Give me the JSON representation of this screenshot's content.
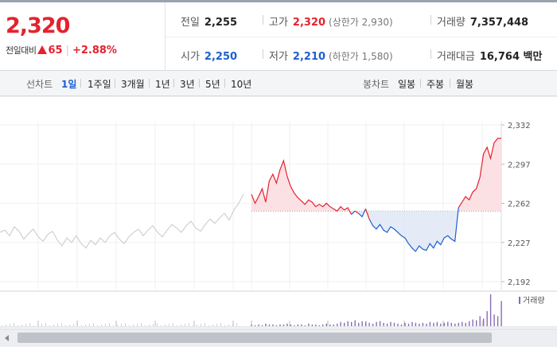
{
  "quote": {
    "price": "2,320",
    "change_label": "전일대비",
    "change": "65",
    "change_pct": "+2.88%",
    "prev_close_label": "전일",
    "prev_close": "2,255",
    "open_label": "시가",
    "open": "2,250",
    "high_label": "고가",
    "high": "2,320",
    "upper_limit": "(상한가 2,930)",
    "low_label": "저가",
    "low": "2,210",
    "lower_limit": "(하한가 1,580)",
    "volume_label": "거래량",
    "volume": "7,357,448",
    "amount_label": "거래대금",
    "amount": "16,764 백만"
  },
  "tabs": {
    "line_title": "선차트",
    "line_items": [
      "1일",
      "1주일",
      "3개월",
      "1년",
      "3년",
      "5년",
      "10년"
    ],
    "active_line": "1일",
    "candle_title": "봉차트",
    "candle_items": [
      "일봉",
      "주봉",
      "월봉"
    ]
  },
  "colors": {
    "up": "#e5222f",
    "down": "#1e5fcf",
    "neutral": "#c8c8c8",
    "volume": "#8a6bb5"
  },
  "chart_data": {
    "type": "line",
    "y_ticks": [
      "2,332",
      "2,297",
      "2,262",
      "2,227",
      "2,192"
    ],
    "ylim": [
      2192,
      2332
    ],
    "reference": 2255,
    "prev_day_series": [
      2236,
      2238,
      2233,
      2241,
      2237,
      2230,
      2235,
      2239,
      2232,
      2228,
      2234,
      2237,
      2229,
      2224,
      2231,
      2227,
      2233,
      2226,
      2222,
      2229,
      2225,
      2231,
      2227,
      2233,
      2236,
      2230,
      2226,
      2232,
      2236,
      2239,
      2233,
      2238,
      2242,
      2236,
      2232,
      2238,
      2243,
      2240,
      2236,
      2242,
      2246,
      2240,
      2237,
      2243,
      2248,
      2244,
      2249,
      2253,
      2247,
      2256,
      2262,
      2270
    ],
    "today_series": [
      2270,
      2262,
      2268,
      2275,
      2263,
      2282,
      2288,
      2280,
      2292,
      2300,
      2286,
      2277,
      2271,
      2267,
      2264,
      2261,
      2265,
      2263,
      2259,
      2261,
      2259,
      2262,
      2259,
      2257,
      2255,
      2259,
      2256,
      2258,
      2252,
      2255,
      2253,
      2250,
      2257,
      2248,
      2242,
      2239,
      2243,
      2238,
      2236,
      2241,
      2239,
      2236,
      2233,
      2231,
      2226,
      2222,
      2219,
      2224,
      2221,
      2220,
      2226,
      2222,
      2228,
      2225,
      2231,
      2233,
      2230,
      2228,
      2258,
      2263,
      2268,
      2265,
      2272,
      2275,
      2285,
      2306,
      2312,
      2302,
      2316,
      2320,
      2320
    ],
    "volume_legend": "거래량",
    "volume": [
      2,
      1,
      2,
      1,
      3,
      2,
      2,
      1,
      2,
      2,
      3,
      2,
      1,
      2,
      2,
      1,
      3,
      2,
      2,
      1,
      2,
      3,
      2,
      2,
      3,
      5,
      4,
      6,
      5,
      7,
      4,
      6,
      5,
      4,
      3,
      5,
      6,
      4,
      3,
      5,
      4,
      3,
      2,
      4,
      3,
      5,
      4,
      3,
      4,
      3,
      5,
      4,
      5,
      3,
      4,
      5,
      4,
      3,
      4,
      5,
      4,
      6,
      8,
      7,
      12,
      9,
      18,
      38,
      14,
      12,
      30
    ]
  }
}
